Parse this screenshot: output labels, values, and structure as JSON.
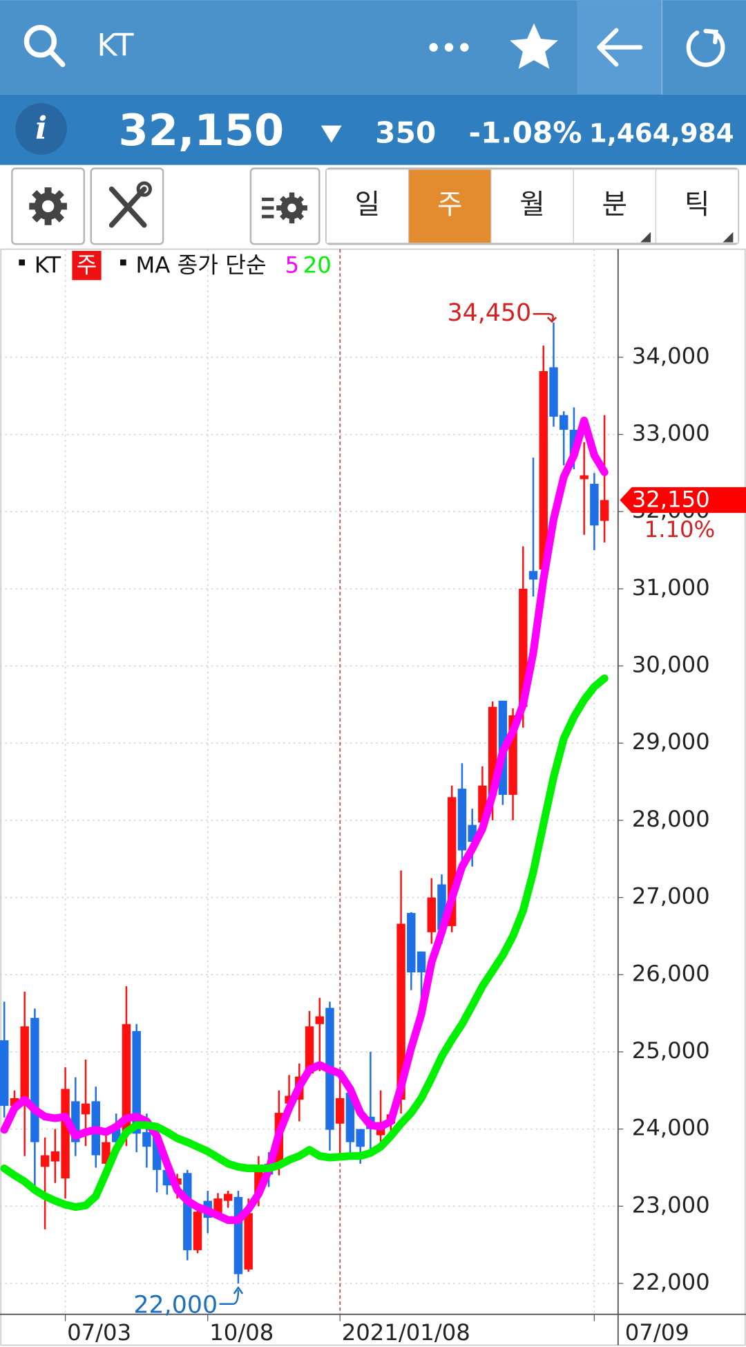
{
  "top_bar": {
    "title": "KT"
  },
  "quote": {
    "price": "32,150",
    "change": "350",
    "change_pct": "-1.08%",
    "volume": "1,464,984"
  },
  "toolbar": {
    "tabs": [
      "일",
      "주",
      "월",
      "분",
      "틱"
    ],
    "selected": 1
  },
  "chart_data": {
    "type": "candlestick",
    "legend": {
      "symbol": "KT",
      "period": "주",
      "ma_label": "MA 종가 단순"
    },
    "categories": [
      null,
      null,
      null,
      null,
      null,
      null,
      "07/03",
      null,
      null,
      null,
      null,
      null,
      null,
      null,
      null,
      null,
      null,
      null,
      null,
      null,
      "10/08",
      null,
      null,
      null,
      null,
      null,
      null,
      null,
      null,
      null,
      null,
      null,
      null,
      "2021/01/08",
      null,
      null,
      null,
      null,
      null,
      null,
      null,
      null,
      null,
      null,
      null,
      null,
      null,
      null,
      null,
      null,
      null,
      null,
      null,
      null,
      null,
      null,
      null,
      null,
      "07/09",
      null
    ],
    "open": [
      25150,
      24300,
      24380,
      25440,
      23510,
      23580,
      23360,
      24360,
      24190,
      24360,
      23550,
      24000,
      23960,
      25270,
      23960,
      23900,
      23470,
      23280,
      23430,
      22430,
      23070,
      22910,
      23070,
      23120,
      22180,
      23160,
      23550,
      23520,
      24330,
      24380,
      24720,
      25360,
      25570,
      24070,
      24470,
      24000,
      24160,
      23920,
      24070,
      24380,
      26800,
      26300,
      26550,
      27170,
      26630,
      28410,
      27940,
      27970,
      28330,
      29550,
      28330,
      29470,
      31230,
      31250,
      33870,
      33250,
      33060,
      32420,
      32360,
      31880
    ],
    "high": [
      25650,
      24500,
      25780,
      25560,
      23890,
      24000,
      24800,
      24670,
      24900,
      24550,
      24000,
      24200,
      25850,
      25360,
      24200,
      24000,
      23500,
      23420,
      23470,
      23000,
      23200,
      23170,
      23200,
      23200,
      23100,
      23650,
      23700,
      24500,
      24700,
      24850,
      25530,
      25700,
      25650,
      24700,
      24600,
      24000,
      25000,
      24500,
      24200,
      27350,
      26810,
      26300,
      27250,
      27300,
      28450,
      28740,
      28150,
      28700,
      29540,
      29550,
      29450,
      31550,
      32700,
      34150,
      34450,
      33300,
      33350,
      32900,
      32500,
      33250
    ],
    "low": [
      24150,
      24200,
      23650,
      23170,
      22700,
      23300,
      23100,
      23650,
      23780,
      23500,
      23360,
      23770,
      23780,
      23700,
      23500,
      23180,
      23150,
      23100,
      22300,
      22390,
      22650,
      22870,
      22980,
      22000,
      22150,
      23000,
      23250,
      23400,
      24170,
      24100,
      24700,
      24750,
      23720,
      23600,
      23650,
      23550,
      23700,
      23800,
      23850,
      24200,
      25800,
      25500,
      26400,
      26400,
      26550,
      27450,
      27400,
      27900,
      28000,
      28200,
      28000,
      29200,
      30900,
      31200,
      33100,
      32600,
      32550,
      31700,
      31500,
      31600
    ],
    "close": [
      24300,
      24400,
      25330,
      23830,
      23660,
      23710,
      24520,
      23830,
      24330,
      23660,
      23830,
      23830,
      25360,
      23940,
      23770,
      23470,
      23270,
      23360,
      22430,
      22930,
      22850,
      23100,
      23160,
      22120,
      22910,
      23510,
      23410,
      24210,
      24430,
      24680,
      25330,
      25460,
      23990,
      24400,
      23830,
      23770,
      24000,
      24090,
      24190,
      26660,
      26030,
      26030,
      27000,
      26580,
      28300,
      27610,
      27720,
      28450,
      29470,
      28330,
      29360,
      31000,
      31120,
      33820,
      33230,
      33060,
      32730,
      32470,
      31820,
      32150
    ],
    "up_color": "#ff1010",
    "down_color": "#1f6fe6",
    "series": [
      {
        "name": "5",
        "color": "#ff00ff",
        "values": [
          23990,
          24270,
          24380,
          24250,
          24160,
          24140,
          24160,
          23910,
          23960,
          23990,
          23960,
          24030,
          24140,
          24160,
          24100,
          23910,
          23550,
          23210,
          23070,
          22990,
          22940,
          22880,
          22820,
          22820,
          22960,
          23160,
          23470,
          23940,
          24270,
          24550,
          24770,
          24830,
          24770,
          24720,
          24520,
          24210,
          24050,
          24030,
          24100,
          24550,
          25050,
          25490,
          26160,
          26550,
          26990,
          27400,
          27630,
          27890,
          28330,
          28890,
          29150,
          29500,
          30170,
          31120,
          31900,
          32450,
          32730,
          33180,
          32730,
          32510
        ]
      },
      {
        "name": "20",
        "color": "#00f000",
        "values": [
          23490,
          23400,
          23320,
          23210,
          23130,
          23070,
          23020,
          22990,
          23010,
          23130,
          23430,
          23740,
          23960,
          24050,
          24050,
          24030,
          23960,
          23880,
          23830,
          23770,
          23710,
          23630,
          23550,
          23510,
          23490,
          23490,
          23490,
          23530,
          23600,
          23650,
          23730,
          23650,
          23630,
          23640,
          23650,
          23650,
          23690,
          23770,
          23910,
          24070,
          24210,
          24400,
          24660,
          24940,
          25160,
          25360,
          25600,
          25850,
          26050,
          26250,
          26500,
          26830,
          27330,
          27950,
          28560,
          29060,
          29340,
          29560,
          29730,
          29840
        ]
      }
    ],
    "ylim": [
      21600,
      35400
    ],
    "yticks": [
      {
        "value": 22000,
        "label": "22,000"
      },
      {
        "value": 23000,
        "label": "23,000"
      },
      {
        "value": 24000,
        "label": "24,000"
      },
      {
        "value": 25000,
        "label": "25,000"
      },
      {
        "value": 26000,
        "label": "26,000"
      },
      {
        "value": 27000,
        "label": "27,000"
      },
      {
        "value": 28000,
        "label": "28,000"
      },
      {
        "value": 29000,
        "label": "29,000"
      },
      {
        "value": 30000,
        "label": "30,000"
      },
      {
        "value": 31000,
        "label": "31,000"
      },
      {
        "value": 32000,
        "label": "32,000"
      },
      {
        "value": 33000,
        "label": "33,000"
      },
      {
        "value": 34000,
        "label": "34,000"
      }
    ],
    "grid": true,
    "high_label": {
      "value": 34450,
      "label": "34,450",
      "color": "#d42020"
    },
    "low_label": {
      "value": 22000,
      "label": "22,000",
      "color": "#1f6fc0"
    },
    "last_label": {
      "value": 32150,
      "label": "32,150",
      "color": "#ff0000"
    },
    "last_change": "1.10%"
  }
}
